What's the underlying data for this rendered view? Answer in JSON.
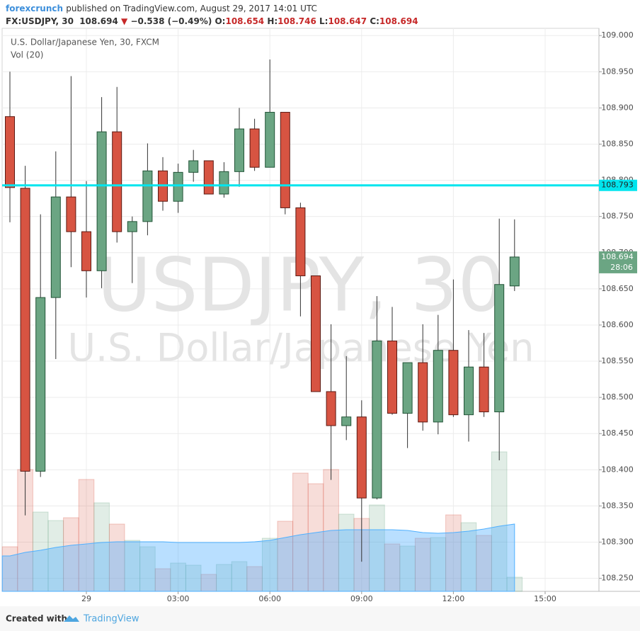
{
  "chart_data": {
    "type": "candlestick",
    "header": {
      "author": "forexcrunch",
      "published": "published on TradingView.com, August 29, 2017 14:01 UTC",
      "symbol": "FX:USDJPY, 30",
      "last": "108.694",
      "arrow": "▼",
      "change": "−0.538 (−0.49%)",
      "ohlc_labels": [
        "O:",
        "H:",
        "L:",
        "C:"
      ],
      "ohlc_values": [
        "108.654",
        "108.746",
        "108.647",
        "108.694"
      ]
    },
    "title": "U.S. Dollar/Japanese Yen, 30, FXCM",
    "volume_title": "Vol (20)",
    "watermark": [
      "USDJPY, 30",
      "U.S. Dollar/Japanese Yen"
    ],
    "categories": [
      null,
      null,
      null,
      null,
      null,
      "29",
      null,
      null,
      null,
      null,
      null,
      "03:00",
      null,
      null,
      null,
      null,
      null,
      "06:00",
      null,
      null,
      null,
      null,
      null,
      "09:00",
      null,
      null,
      null,
      null,
      null,
      "12:00",
      null,
      null,
      null,
      null,
      null,
      "15:00",
      null,
      null,
      null
    ],
    "open": [
      108.888,
      108.789,
      108.398,
      108.638,
      108.777,
      108.729,
      108.675,
      108.867,
      108.729,
      108.743,
      108.813,
      108.771,
      108.811,
      108.827,
      108.781,
      108.812,
      108.871,
      108.818,
      108.894,
      108.762,
      108.668,
      108.508,
      108.461,
      108.473,
      108.361,
      108.578,
      108.478,
      108.548,
      108.466,
      108.565,
      108.476,
      108.542,
      108.48,
      108.654,
      null,
      null,
      null,
      null,
      null
    ],
    "high": [
      108.95,
      108.82,
      108.753,
      108.84,
      108.944,
      108.799,
      108.915,
      108.929,
      108.75,
      108.851,
      108.832,
      108.823,
      108.842,
      108.827,
      108.825,
      108.9,
      108.885,
      108.967,
      108.894,
      108.769,
      108.668,
      108.601,
      108.557,
      108.496,
      108.64,
      108.625,
      108.548,
      108.601,
      108.614,
      108.663,
      108.593,
      108.589,
      108.747,
      108.746,
      null,
      null,
      null,
      null,
      null
    ],
    "low": [
      108.742,
      108.337,
      108.39,
      108.553,
      108.68,
      108.638,
      108.651,
      108.714,
      108.658,
      108.724,
      108.758,
      108.755,
      108.798,
      108.781,
      108.776,
      108.791,
      108.813,
      108.818,
      108.753,
      108.612,
      108.508,
      108.386,
      108.441,
      108.273,
      108.359,
      108.476,
      108.43,
      108.454,
      108.449,
      108.473,
      108.439,
      108.473,
      108.413,
      108.647,
      null,
      null,
      null,
      null,
      null
    ],
    "close": [
      108.79,
      108.398,
      108.638,
      108.777,
      108.729,
      108.675,
      108.867,
      108.729,
      108.743,
      108.813,
      108.771,
      108.811,
      108.827,
      108.781,
      108.812,
      108.871,
      108.818,
      108.894,
      108.762,
      108.668,
      108.508,
      108.461,
      108.473,
      108.361,
      108.578,
      108.478,
      108.548,
      108.466,
      108.565,
      108.476,
      108.542,
      108.48,
      108.656,
      108.694,
      null,
      null,
      null,
      null,
      null
    ],
    "volume": [
      63,
      172,
      112,
      100,
      104,
      158,
      125,
      95,
      72,
      63,
      32,
      40,
      37,
      24,
      38,
      42,
      35,
      75,
      99,
      167,
      152,
      172,
      109,
      103,
      122,
      67,
      64,
      75,
      76,
      108,
      97,
      79,
      197,
      20,
      null,
      null,
      null,
      null,
      null
    ],
    "volume_ma": [
      50,
      55,
      58,
      62,
      65,
      67,
      69,
      70,
      70,
      70,
      70,
      69,
      69,
      69,
      69,
      69,
      70,
      72,
      76,
      80,
      83,
      86,
      87,
      87,
      87,
      87,
      86,
      83,
      82,
      83,
      85,
      88,
      92,
      95,
      null,
      null,
      null,
      null,
      null
    ],
    "up_color": "#6ba583",
    "down_color": "#d75442",
    "ma_color": "#4fb0ff",
    "hline": 108.793,
    "hline_color": "#00e5ee",
    "countdown": "28:06",
    "ylim": [
      108.232,
      109.01
    ],
    "yticks": [
      {
        "value": 109.0,
        "label": "109.000"
      },
      {
        "value": 108.95,
        "label": "108.950"
      },
      {
        "value": 108.9,
        "label": "108.900"
      },
      {
        "value": 108.85,
        "label": "108.850"
      },
      {
        "value": 108.8,
        "label": "108.800"
      },
      {
        "value": 108.75,
        "label": "108.750"
      },
      {
        "value": 108.7,
        "label": "108.700"
      },
      {
        "value": 108.65,
        "label": "108.650"
      },
      {
        "value": 108.6,
        "label": "108.600"
      },
      {
        "value": 108.55,
        "label": "108.550"
      },
      {
        "value": 108.5,
        "label": "108.500"
      },
      {
        "value": 108.45,
        "label": "108.450"
      },
      {
        "value": 108.4,
        "label": "108.400"
      },
      {
        "value": 108.35,
        "label": "108.350"
      },
      {
        "value": 108.3,
        "label": "108.300"
      },
      {
        "value": 108.25,
        "label": "108.250"
      }
    ],
    "grid": true,
    "footer": {
      "created": "Created with",
      "brand": "TradingView"
    }
  }
}
